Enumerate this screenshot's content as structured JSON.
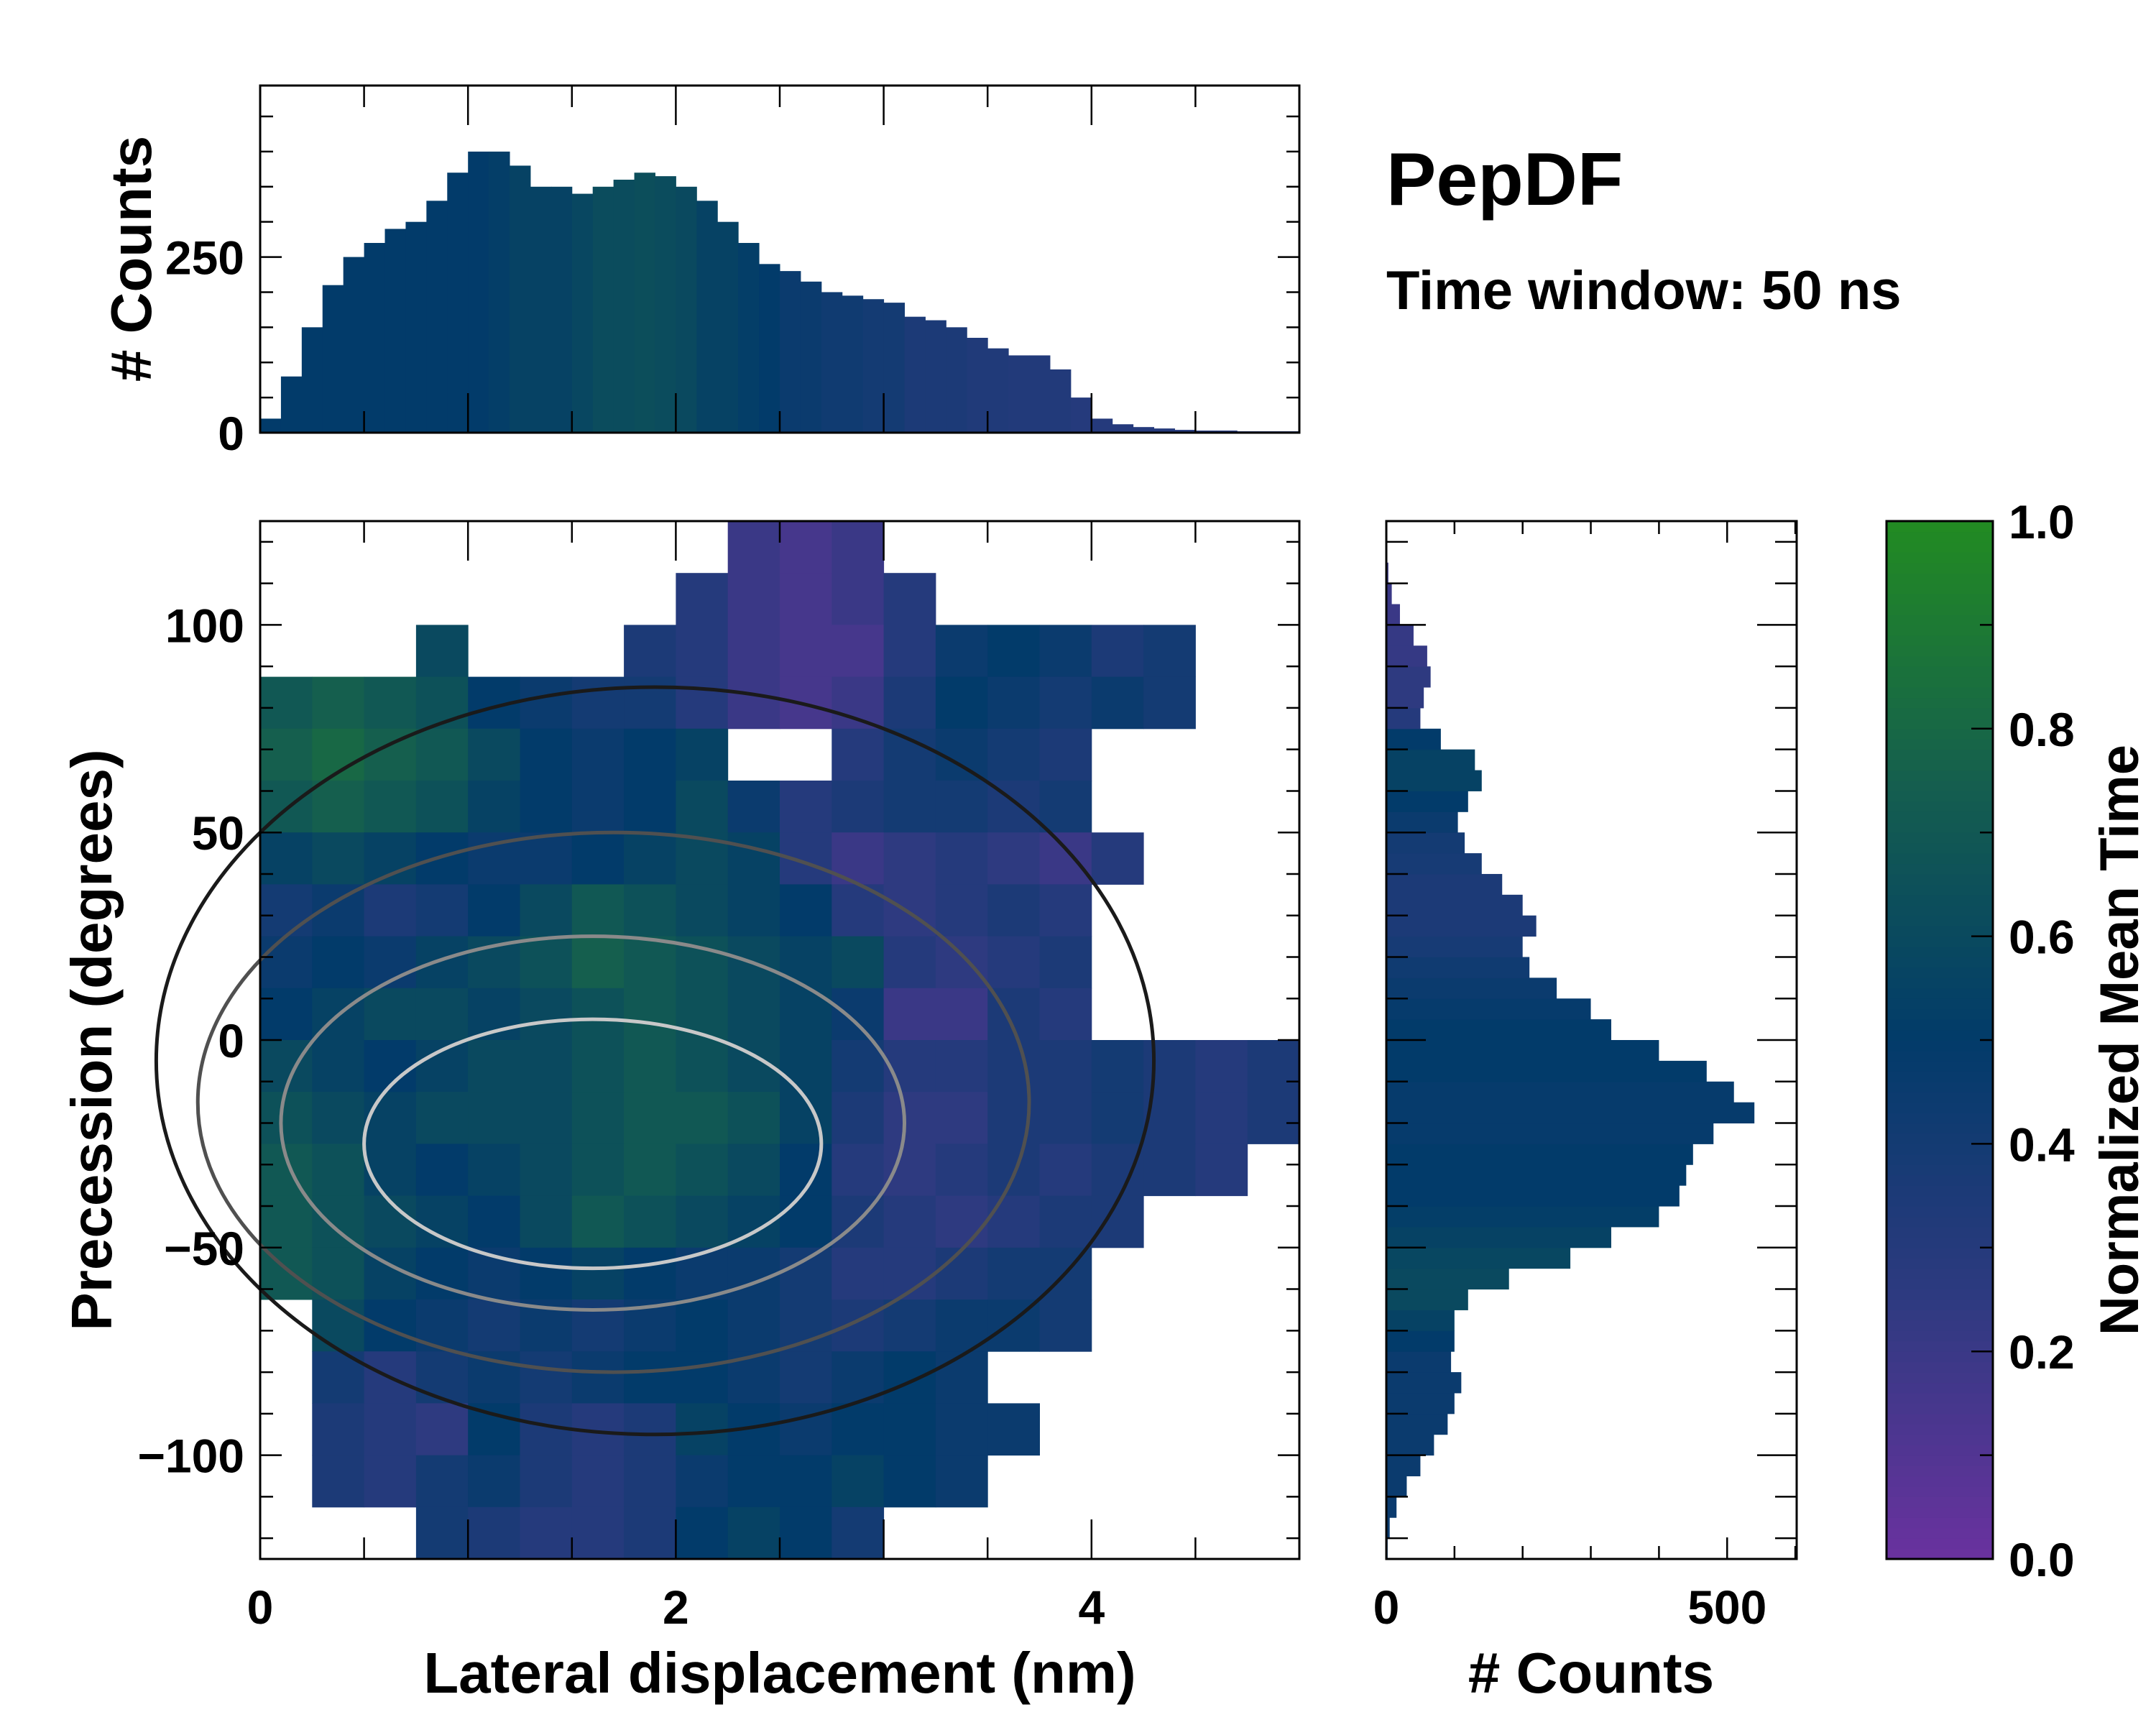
{
  "title": "PepDF",
  "subtitle": "Time window: 50 ns",
  "colormap": {
    "stops": [
      0,
      0.25,
      0.5,
      0.75,
      1
    ],
    "colors": [
      "#6a329f",
      "#2e3a80",
      "#023b6a",
      "#155f4e",
      "#228b22"
    ]
  },
  "chart_data": [
    {
      "type": "heatmap",
      "name": "main-2d-histogram",
      "xlabel": "Lateral displacement (nm)",
      "ylabel": "Precession (degrees)",
      "xlim": [
        0,
        5
      ],
      "ylim": [
        -125,
        125
      ],
      "xticks": [
        "0",
        "2",
        "4"
      ],
      "xtick_values": [
        0,
        2,
        4
      ],
      "yticks": [
        "−100",
        "−50",
        "0",
        "50",
        "100"
      ],
      "ytick_values": [
        -100,
        -50,
        0,
        50,
        100
      ],
      "x_bin_width": 0.25,
      "y_bin_width": 12.5,
      "rows_top_to_bottom": [
        [
          null,
          null,
          null,
          null,
          null,
          null,
          null,
          null,
          null,
          0.2,
          0.15,
          0.2
        ],
        [
          null,
          null,
          null,
          null,
          null,
          null,
          null,
          null,
          0.3,
          0.2,
          0.15,
          0.2,
          0.3
        ],
        [
          null,
          null,
          null,
          0.6,
          null,
          null,
          null,
          0.35,
          0.3,
          0.2,
          0.15,
          0.15,
          0.3,
          0.45,
          0.5,
          0.45,
          0.35,
          0.4
        ],
        [
          0.7,
          0.75,
          0.7,
          0.65,
          0.5,
          0.45,
          0.4,
          0.4,
          0.3,
          0.2,
          0.15,
          0.2,
          0.35,
          0.5,
          0.45,
          0.4,
          0.45,
          0.4
        ],
        [
          0.75,
          0.8,
          0.75,
          0.7,
          0.6,
          0.5,
          0.45,
          0.5,
          0.55,
          null,
          null,
          0.3,
          0.4,
          0.45,
          0.4,
          0.35
        ],
        [
          0.7,
          0.75,
          0.7,
          0.65,
          0.55,
          0.5,
          0.45,
          0.5,
          0.6,
          0.45,
          0.3,
          0.35,
          0.4,
          0.4,
          0.35,
          0.4
        ],
        [
          0.55,
          0.6,
          0.55,
          0.5,
          0.45,
          0.45,
          0.5,
          0.55,
          0.6,
          0.55,
          0.3,
          0.2,
          0.25,
          0.3,
          0.25,
          0.2,
          0.3
        ],
        [
          0.4,
          0.45,
          0.35,
          0.4,
          0.5,
          0.6,
          0.7,
          0.65,
          0.6,
          0.55,
          0.5,
          0.3,
          0.25,
          0.3,
          0.35,
          0.3
        ],
        [
          0.45,
          0.5,
          0.45,
          0.55,
          0.6,
          0.65,
          0.75,
          0.7,
          0.65,
          0.6,
          0.55,
          0.6,
          0.3,
          0.25,
          0.3,
          0.35
        ],
        [
          0.5,
          0.55,
          0.6,
          0.6,
          0.55,
          0.6,
          0.65,
          0.7,
          0.65,
          0.6,
          0.55,
          0.45,
          0.2,
          0.2,
          0.35,
          0.3
        ],
        [
          0.6,
          0.55,
          0.5,
          0.55,
          0.6,
          0.6,
          0.65,
          0.7,
          0.65,
          0.6,
          0.55,
          0.4,
          0.3,
          0.3,
          0.35,
          0.35,
          0.4,
          0.35,
          0.3,
          0.35
        ],
        [
          0.65,
          0.6,
          0.55,
          0.6,
          0.6,
          0.6,
          0.65,
          0.7,
          0.7,
          0.65,
          0.55,
          0.35,
          0.25,
          0.25,
          0.35,
          0.35,
          0.4,
          0.35,
          0.3,
          0.35
        ],
        [
          0.7,
          0.65,
          0.55,
          0.5,
          0.55,
          0.6,
          0.65,
          0.7,
          0.65,
          0.6,
          0.5,
          0.3,
          0.25,
          0.3,
          0.35,
          0.3,
          0.35,
          0.35,
          0.3
        ],
        [
          0.7,
          0.65,
          0.6,
          0.55,
          0.5,
          0.6,
          0.7,
          0.65,
          0.6,
          0.55,
          0.5,
          0.35,
          0.3,
          0.25,
          0.3,
          0.35,
          0.35
        ],
        [
          0.7,
          0.65,
          0.55,
          0.5,
          0.45,
          0.5,
          0.55,
          0.5,
          0.45,
          0.45,
          0.4,
          0.3,
          0.3,
          0.35,
          0.4,
          0.4
        ],
        [
          null,
          0.6,
          0.5,
          0.45,
          0.4,
          0.45,
          0.4,
          0.45,
          0.5,
          0.45,
          0.4,
          0.35,
          0.4,
          0.45,
          0.45,
          0.4
        ],
        [
          null,
          0.4,
          0.3,
          0.4,
          0.45,
          0.4,
          0.45,
          0.5,
          0.5,
          0.45,
          0.4,
          0.45,
          0.5,
          0.45
        ],
        [
          null,
          0.35,
          0.3,
          0.25,
          0.5,
          0.35,
          0.3,
          0.35,
          0.55,
          0.5,
          0.45,
          0.5,
          0.5,
          0.45,
          0.45
        ],
        [
          null,
          0.35,
          0.3,
          0.4,
          0.45,
          0.35,
          0.3,
          0.35,
          0.45,
          0.5,
          0.5,
          0.55,
          0.5,
          0.45
        ],
        [
          null,
          null,
          null,
          0.4,
          0.35,
          0.3,
          0.3,
          0.35,
          0.5,
          0.55,
          0.5,
          0.4
        ]
      ]
    },
    {
      "type": "bar",
      "name": "top-marginal-histogram",
      "ylabel": "# Counts",
      "xlim": [
        0,
        5
      ],
      "ylim": [
        0,
        494
      ],
      "yticks": [
        "0",
        "250"
      ],
      "ytick_values": [
        0,
        250
      ],
      "bin_width": 0.1,
      "x": [
        0,
        0.1,
        0.2,
        0.3,
        0.4,
        0.5,
        0.6,
        0.7,
        0.8,
        0.9,
        1.0,
        1.1,
        1.2,
        1.3,
        1.4,
        1.5,
        1.6,
        1.7,
        1.8,
        1.9,
        2.0,
        2.1,
        2.2,
        2.3,
        2.4,
        2.5,
        2.6,
        2.7,
        2.8,
        2.9,
        3.0,
        3.1,
        3.2,
        3.3,
        3.4,
        3.5,
        3.6,
        3.7,
        3.8,
        3.9,
        4.0,
        4.1,
        4.2,
        4.3,
        4.4,
        4.5,
        4.6,
        4.7,
        4.8,
        4.9
      ],
      "values": [
        20,
        80,
        150,
        210,
        250,
        270,
        290,
        300,
        330,
        370,
        400,
        400,
        380,
        350,
        350,
        340,
        350,
        360,
        370,
        365,
        350,
        330,
        300,
        270,
        240,
        230,
        215,
        200,
        195,
        190,
        185,
        165,
        160,
        150,
        135,
        120,
        110,
        110,
        90,
        50,
        20,
        12,
        8,
        6,
        4,
        3,
        3,
        2,
        2,
        2
      ],
      "mean_time": [
        0.5,
        0.5,
        0.5,
        0.5,
        0.5,
        0.5,
        0.5,
        0.5,
        0.5,
        0.5,
        0.5,
        0.52,
        0.55,
        0.55,
        0.55,
        0.58,
        0.62,
        0.62,
        0.63,
        0.62,
        0.6,
        0.55,
        0.55,
        0.52,
        0.5,
        0.45,
        0.45,
        0.42,
        0.42,
        0.4,
        0.4,
        0.35,
        0.35,
        0.35,
        0.33,
        0.33,
        0.32,
        0.32,
        0.32,
        0.3,
        0.3,
        0.3,
        0.3,
        0.3,
        0.3,
        0.3,
        0.3,
        0.3,
        0.3,
        0.3
      ]
    },
    {
      "type": "bar",
      "orientation": "horizontal",
      "name": "right-marginal-histogram",
      "xlabel": "# Counts",
      "xlim": [
        0,
        602
      ],
      "ylim": [
        -125,
        125
      ],
      "xticks": [
        "0",
        "500"
      ],
      "xtick_values": [
        0,
        500
      ],
      "bin_width": 5,
      "y": [
        -122.5,
        -117.5,
        -112.5,
        -107.5,
        -102.5,
        -97.5,
        -92.5,
        -87.5,
        -82.5,
        -77.5,
        -72.5,
        -67.5,
        -62.5,
        -57.5,
        -52.5,
        -47.5,
        -42.5,
        -37.5,
        -32.5,
        -27.5,
        -22.5,
        -17.5,
        -12.5,
        -7.5,
        -2.5,
        2.5,
        7.5,
        12.5,
        17.5,
        22.5,
        27.5,
        32.5,
        37.5,
        42.5,
        47.5,
        52.5,
        57.5,
        62.5,
        67.5,
        72.5,
        77.5,
        82.5,
        87.5,
        92.5,
        97.5,
        102.5,
        107.5,
        112.5,
        117.5,
        122.5
      ],
      "values": [
        2,
        5,
        15,
        30,
        50,
        70,
        90,
        100,
        110,
        95,
        100,
        100,
        120,
        180,
        270,
        330,
        400,
        430,
        440,
        450,
        480,
        540,
        510,
        470,
        400,
        330,
        300,
        250,
        210,
        200,
        220,
        200,
        170,
        140,
        115,
        105,
        120,
        140,
        130,
        80,
        50,
        55,
        65,
        60,
        40,
        20,
        8,
        3,
        0,
        0
      ],
      "mean_time": [
        0.45,
        0.45,
        0.45,
        0.45,
        0.45,
        0.45,
        0.45,
        0.45,
        0.45,
        0.45,
        0.5,
        0.55,
        0.6,
        0.6,
        0.58,
        0.55,
        0.52,
        0.5,
        0.5,
        0.5,
        0.48,
        0.48,
        0.48,
        0.5,
        0.5,
        0.5,
        0.48,
        0.45,
        0.42,
        0.38,
        0.35,
        0.35,
        0.35,
        0.38,
        0.4,
        0.45,
        0.5,
        0.55,
        0.55,
        0.5,
        0.3,
        0.25,
        0.25,
        0.22,
        0.22,
        0.2,
        0.2,
        0.2,
        0.2,
        0.2
      ]
    },
    {
      "type": "colorbar",
      "name": "colorbar",
      "label": "Normalized Mean Time",
      "range": [
        0,
        1
      ],
      "ticks": [
        "0.0",
        "0.2",
        "0.4",
        "0.6",
        "0.8",
        "1.0"
      ],
      "tick_values": [
        0,
        0.2,
        0.4,
        0.6,
        0.8,
        1.0
      ]
    }
  ]
}
